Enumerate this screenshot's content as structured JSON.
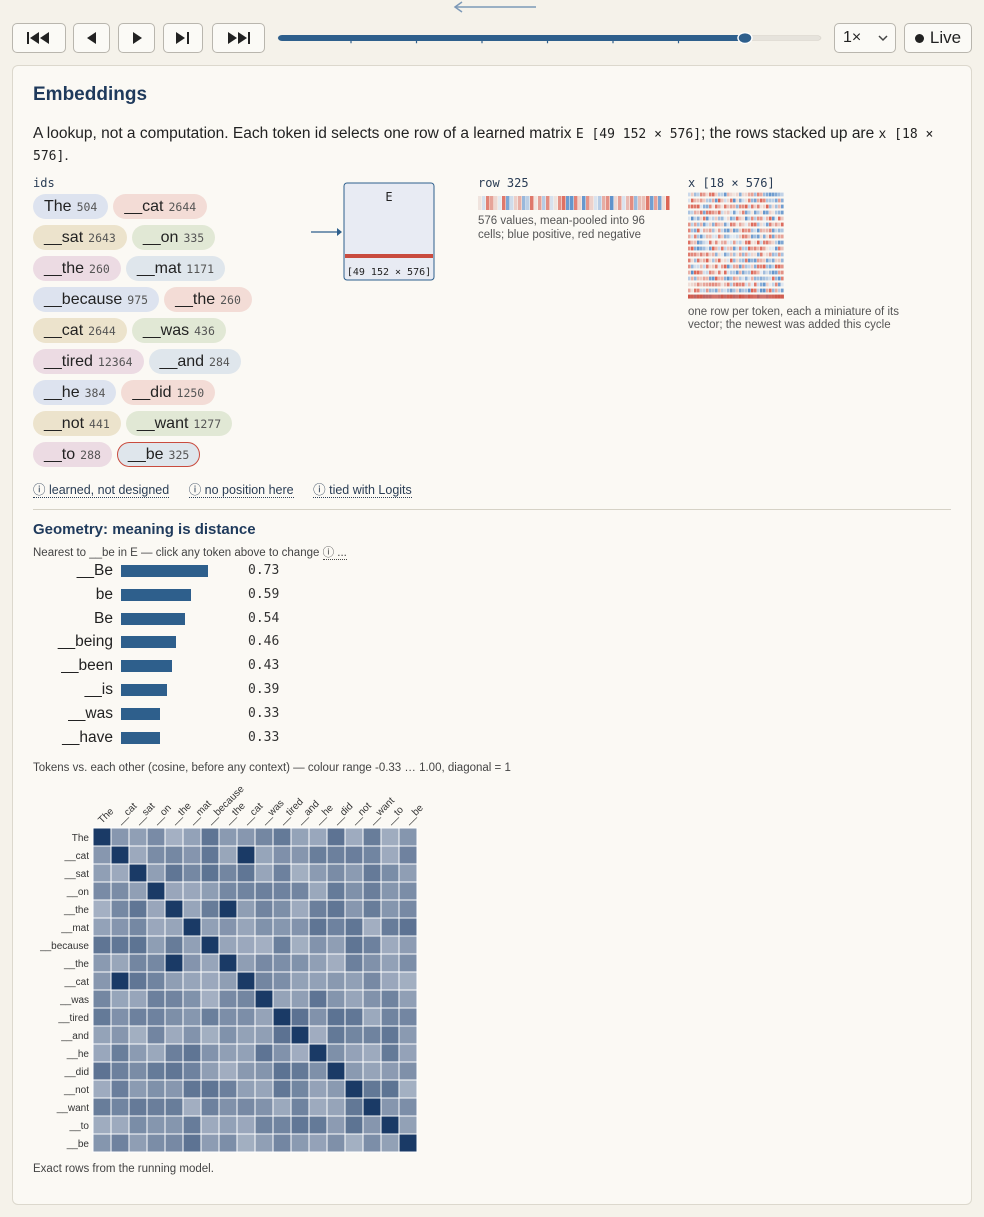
{
  "toolbar": {
    "first_label": "first",
    "prev_label": "previous",
    "play_label": "play",
    "next_label": "next",
    "last_label": "last",
    "progress": 0.86,
    "speed": "1×",
    "live_label": "Live"
  },
  "panel": {
    "title": "Embeddings",
    "desc_pre": "A lookup, not a computation. Each token id selects one row of a learned matrix ",
    "desc_e": "E [49 152 × 576]",
    "desc_mid": "; the rows stacked up are ",
    "desc_x": "x [18 × 576]",
    "desc_end": ".",
    "ids_label": "ids",
    "tokens": [
      {
        "tok": "The",
        "id": "504",
        "color": "#dde3ef"
      },
      {
        "tok": "__cat",
        "id": "2644",
        "color": "#f3dcd6"
      },
      {
        "tok": "__sat",
        "id": "2643",
        "color": "#ece3cc"
      },
      {
        "tok": "__on",
        "id": "335",
        "color": "#e1e8d5"
      },
      {
        "tok": "__the",
        "id": "260",
        "color": "#ecdbe3"
      },
      {
        "tok": "__mat",
        "id": "1171",
        "color": "#dfe6ec"
      },
      {
        "tok": "__because",
        "id": "975",
        "color": "#dde3ef"
      },
      {
        "tok": "__the",
        "id": "260",
        "color": "#f3dcd6"
      },
      {
        "tok": "__cat",
        "id": "2644",
        "color": "#ece3cc"
      },
      {
        "tok": "__was",
        "id": "436",
        "color": "#e1e8d5"
      },
      {
        "tok": "__tired",
        "id": "12364",
        "color": "#ecdbe3"
      },
      {
        "tok": "__and",
        "id": "284",
        "color": "#dfe6ec"
      },
      {
        "tok": "__he",
        "id": "384",
        "color": "#dde3ef"
      },
      {
        "tok": "__did",
        "id": "1250",
        "color": "#f3dcd6"
      },
      {
        "tok": "__not",
        "id": "441",
        "color": "#ece3cc"
      },
      {
        "tok": "__want",
        "id": "1277",
        "color": "#e1e8d5"
      },
      {
        "tok": "__to",
        "id": "288",
        "color": "#ecdbe3"
      },
      {
        "tok": "__be",
        "id": "325",
        "color": "#dfe6ec"
      }
    ],
    "matrix_label": "E",
    "matrix_dims": "[49 152 × 576]",
    "row_label": "row 325",
    "row_caption": "576 values, mean-pooled into 96 cells; blue positive, red negative",
    "x_label": "x [18 × 576]",
    "x_caption": "one row per token, each a miniature of its vector; the newest was added this cycle",
    "links": [
      "ⓘ learned, not designed",
      "ⓘ no position here",
      "ⓘ tied with Logits"
    ]
  },
  "geometry": {
    "title": "Geometry: meaning is distance",
    "subtitle": "Nearest to __be in E — click any token above to change ",
    "subtitle_info": "ⓘ ...",
    "neighbors": [
      {
        "label": "__Be",
        "value": 0.73,
        "text": "0.73"
      },
      {
        "label": "be",
        "value": 0.59,
        "text": "0.59"
      },
      {
        "label": "Be",
        "value": 0.54,
        "text": "0.54"
      },
      {
        "label": "__being",
        "value": 0.46,
        "text": "0.46"
      },
      {
        "label": "__been",
        "value": 0.43,
        "text": "0.43"
      },
      {
        "label": "__is",
        "value": 0.39,
        "text": "0.39"
      },
      {
        "label": "__was",
        "value": 0.33,
        "text": "0.33"
      },
      {
        "label": "__have",
        "value": 0.33,
        "text": "0.33"
      }
    ],
    "heat_caption": "Tokens vs. each other (cosine, before any context) — colour range -0.33 … 1.00, diagonal = 1",
    "footer": "Exact rows from the running model."
  },
  "chart_data": {
    "type": "heatmap",
    "labels": [
      "The",
      "__cat",
      "__sat",
      "__on",
      "__the",
      "__mat",
      "__because",
      "__the",
      "__cat",
      "__was",
      "__tired",
      "__and",
      "__he",
      "__did",
      "__not",
      "__want",
      "__to",
      "__be"
    ],
    "range": [
      -0.33,
      1.0
    ],
    "colors": {
      "low": "#f2f3f7",
      "high": "#1a3a66"
    }
  }
}
